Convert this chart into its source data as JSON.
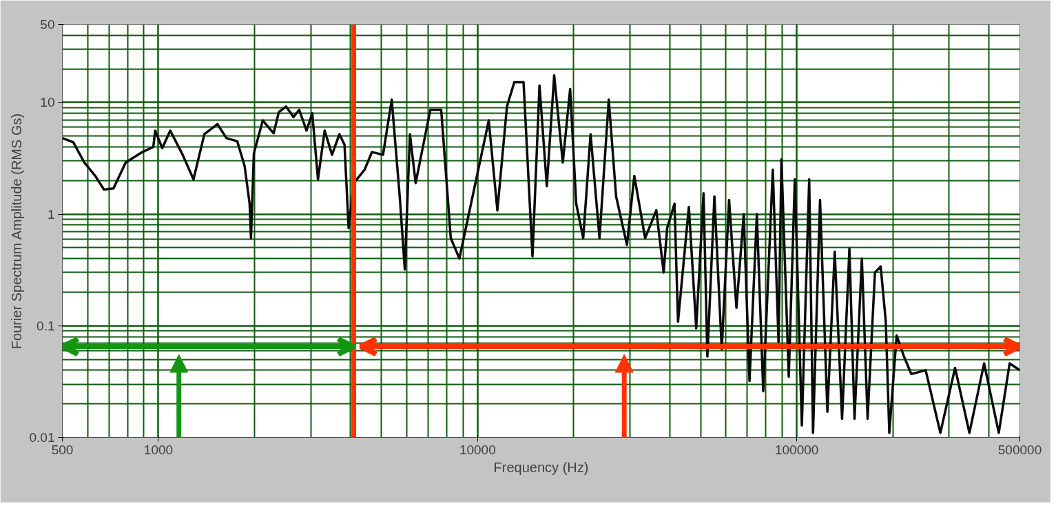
{
  "chart_data": {
    "type": "line",
    "xlabel": "Frequency (Hz)",
    "ylabel": "Fourier Spectrum Amplitude (RMS Gs)",
    "log": "xy",
    "grid": true,
    "line_style": "solid",
    "marker": "none",
    "xlim": [
      500,
      500000
    ],
    "ylim": [
      0.01,
      50
    ],
    "xticks": [
      500,
      1000,
      10000,
      100000,
      500000
    ],
    "yticks": [
      0.01,
      0.1,
      1,
      10,
      50
    ],
    "x": [
      500,
      541,
      586,
      634,
      675,
      723,
      790,
      891,
      964,
      977,
      1028,
      1089,
      1191,
      1288,
      1393,
      1531,
      1633,
      1766,
      1862,
      1931,
      1950,
      1991,
      2123,
      2296,
      2383,
      2512,
      2649,
      2761,
      2911,
      3034,
      3162,
      3318,
      3499,
      3690,
      3828,
      3945,
      4093,
      4426,
      4667,
      5055,
      5383,
      5702,
      5916,
      6138,
      6397,
      7112,
      7691,
      8241,
      8770,
      9747,
      10839,
      11535,
      12359,
      13031,
      13932,
      14859,
      15631,
      16479,
      17378,
      18493,
      19498,
      20370,
      21429,
      22594,
      24099,
      25763,
      27164,
      29376,
      30974,
      33497,
      36308,
      38282,
      39264,
      41400,
      42462,
      45920,
      48417,
      51050,
      52480,
      55208,
      58210,
      61376,
      64714,
      68234,
      71121,
      74989,
      78524,
      84140,
      87700,
      89536,
      94406,
      98628,
      103753,
      109396,
      112460,
      118304,
      124738,
      131522,
      138676,
      146218,
      151705,
      159956,
      166716,
      175792,
      183231,
      190108,
      194984,
      205589,
      216770,
      228560,
      253513,
      281838,
      313329,
      347536,
      386367,
      429536,
      464515,
      500000
    ],
    "series": [
      {
        "color": "#0a0a0a",
        "values": [
          4.8,
          4.4,
          2.9,
          2.2,
          1.66,
          1.7,
          2.9,
          3.6,
          4.0,
          5.6,
          3.9,
          5.6,
          3.4,
          2.05,
          5.2,
          6.4,
          4.8,
          4.5,
          2.7,
          1.24,
          0.61,
          3.5,
          6.9,
          5.3,
          8.2,
          9.2,
          7.4,
          8.6,
          5.6,
          8.0,
          2.05,
          5.6,
          3.4,
          5.2,
          4.2,
          0.75,
          1.9,
          2.5,
          3.6,
          3.4,
          10.6,
          1.44,
          0.32,
          5.2,
          1.9,
          8.6,
          8.6,
          0.61,
          0.4,
          1.66,
          6.9,
          1.08,
          9.2,
          15.2,
          15.2,
          0.42,
          14.2,
          1.78,
          17.5,
          2.9,
          13.2,
          1.24,
          0.61,
          5.2,
          0.61,
          10.6,
          1.44,
          0.53,
          2.2,
          0.61,
          1.08,
          0.3,
          0.75,
          1.24,
          0.109,
          1.16,
          0.095,
          1.54,
          0.053,
          1.44,
          0.062,
          1.34,
          0.145,
          1.0,
          0.032,
          1.0,
          0.026,
          2.5,
          0.071,
          3.1,
          0.035,
          2.05,
          0.0128,
          2.05,
          0.011,
          1.34,
          0.017,
          0.46,
          0.0147,
          0.49,
          0.0147,
          0.4,
          0.0147,
          0.3,
          0.34,
          0.109,
          0.011,
          0.082,
          0.053,
          0.037,
          0.04,
          0.011,
          0.042,
          0.011,
          0.046,
          0.011,
          0.046,
          0.04
        ]
      }
    ],
    "ref_lines": [
      {
        "axis": "x",
        "value": 4093,
        "color": "#ff3300",
        "line_style": "solid"
      }
    ]
  }
}
